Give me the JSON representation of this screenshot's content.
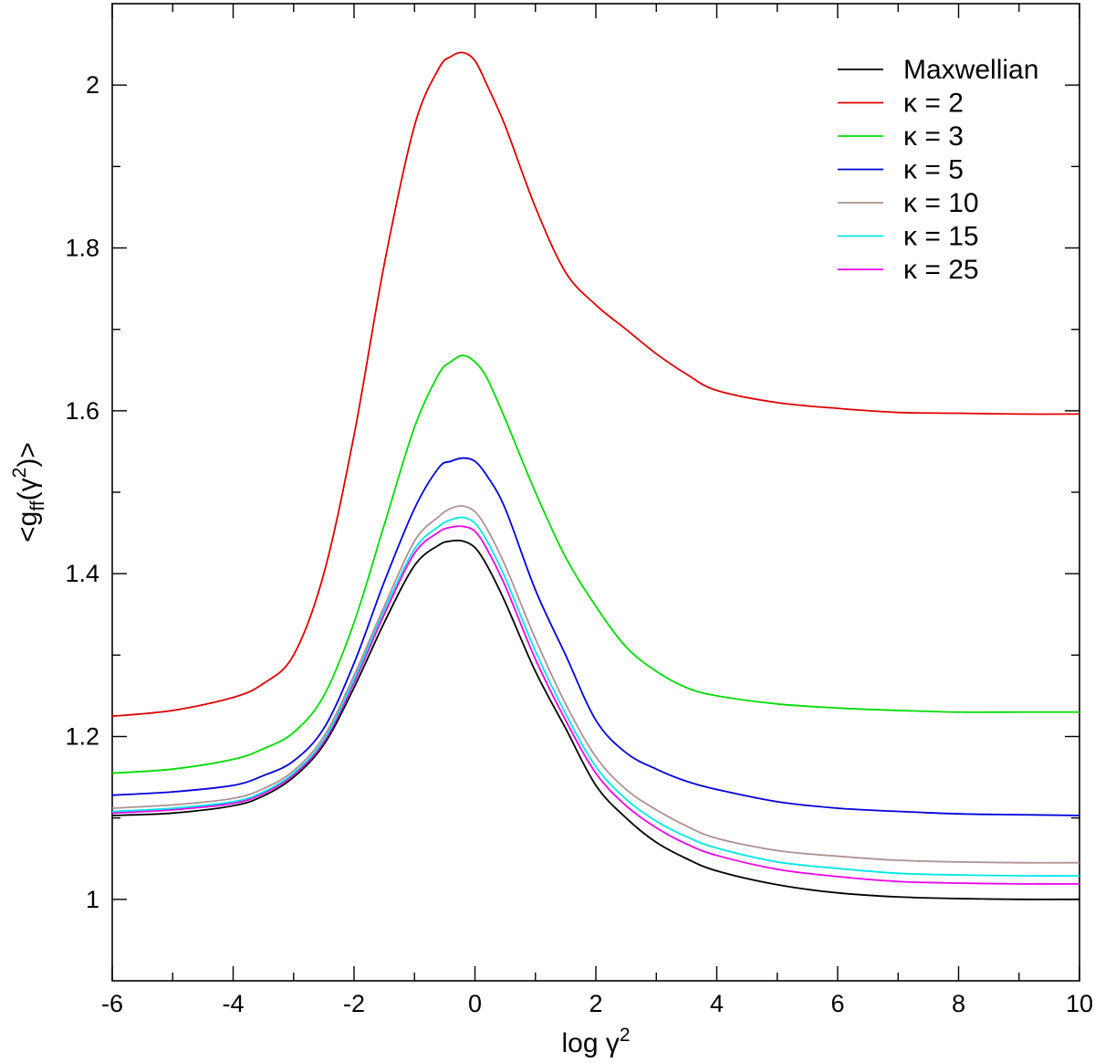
{
  "chart_data": {
    "type": "line",
    "title": "",
    "xlabel": "log γ",
    "xlabel_sup": "2",
    "ylabel": "<g",
    "ylabel_sub": "ff",
    "ylabel_mid": "(γ",
    "ylabel_sup": "2",
    "ylabel_end": ")>",
    "xlim": [
      -6,
      10
    ],
    "ylim": [
      0.9,
      2.1
    ],
    "x_ticks": [
      -6,
      -4,
      -2,
      0,
      2,
      4,
      6,
      8,
      10
    ],
    "x_tick_labels": [
      "-6",
      "-4",
      "-2",
      "0",
      "2",
      "4",
      "6",
      "8",
      "10"
    ],
    "y_ticks": [
      1.0,
      1.2,
      1.4,
      1.6,
      1.8,
      2.0
    ],
    "y_tick_labels": [
      "1",
      "1.2",
      "1.4",
      "1.6",
      "1.8",
      "2"
    ],
    "grid": false,
    "legend_position": "top-right",
    "x": [
      -6,
      -5,
      -4,
      -3.5,
      -3,
      -2.5,
      -2,
      -1.5,
      -1,
      -0.6,
      -0.4,
      -0.2,
      0,
      0.2,
      0.5,
      1,
      1.5,
      2,
      2.5,
      3,
      3.5,
      4,
      5,
      6,
      7,
      8,
      9,
      10
    ],
    "series": [
      {
        "name": "Maxwellian",
        "color": "#000000",
        "values": [
          1.103,
          1.106,
          1.115,
          1.127,
          1.15,
          1.19,
          1.26,
          1.34,
          1.41,
          1.435,
          1.44,
          1.44,
          1.432,
          1.41,
          1.365,
          1.28,
          1.21,
          1.14,
          1.1,
          1.07,
          1.05,
          1.035,
          1.018,
          1.008,
          1.003,
          1.001,
          1.0,
          1.0
        ]
      },
      {
        "name": "κ = 2",
        "color": "#e00000",
        "values": [
          1.225,
          1.232,
          1.248,
          1.265,
          1.3,
          1.4,
          1.57,
          1.78,
          1.95,
          2.02,
          2.035,
          2.04,
          2.03,
          2.0,
          1.95,
          1.85,
          1.77,
          1.73,
          1.7,
          1.67,
          1.645,
          1.625,
          1.61,
          1.603,
          1.598,
          1.597,
          1.596,
          1.596
        ]
      },
      {
        "name": "κ = 3",
        "color": "#00dd00",
        "values": [
          1.155,
          1.16,
          1.172,
          1.185,
          1.205,
          1.25,
          1.34,
          1.46,
          1.58,
          1.645,
          1.66,
          1.668,
          1.66,
          1.64,
          1.59,
          1.5,
          1.42,
          1.36,
          1.31,
          1.28,
          1.26,
          1.25,
          1.24,
          1.235,
          1.232,
          1.23,
          1.23,
          1.23
        ]
      },
      {
        "name": "κ = 5",
        "color": "#0000dd",
        "values": [
          1.128,
          1.132,
          1.14,
          1.152,
          1.17,
          1.21,
          1.29,
          1.39,
          1.48,
          1.53,
          1.538,
          1.542,
          1.538,
          1.52,
          1.48,
          1.38,
          1.3,
          1.22,
          1.18,
          1.16,
          1.145,
          1.135,
          1.12,
          1.112,
          1.108,
          1.105,
          1.104,
          1.103
        ]
      },
      {
        "name": "κ = 10",
        "color": "#b09090",
        "values": [
          1.112,
          1.116,
          1.124,
          1.136,
          1.158,
          1.2,
          1.275,
          1.36,
          1.44,
          1.47,
          1.48,
          1.483,
          1.476,
          1.455,
          1.41,
          1.32,
          1.24,
          1.175,
          1.135,
          1.11,
          1.09,
          1.075,
          1.06,
          1.053,
          1.048,
          1.046,
          1.045,
          1.045
        ]
      },
      {
        "name": "κ = 15",
        "color": "#00e8e8",
        "values": [
          1.108,
          1.112,
          1.12,
          1.132,
          1.155,
          1.196,
          1.27,
          1.355,
          1.43,
          1.458,
          1.466,
          1.469,
          1.462,
          1.44,
          1.395,
          1.305,
          1.228,
          1.163,
          1.123,
          1.096,
          1.077,
          1.063,
          1.046,
          1.038,
          1.032,
          1.03,
          1.029,
          1.029
        ]
      },
      {
        "name": "κ = 25",
        "color": "#ee00ee",
        "values": [
          1.106,
          1.11,
          1.118,
          1.13,
          1.153,
          1.193,
          1.266,
          1.35,
          1.425,
          1.451,
          1.457,
          1.458,
          1.452,
          1.43,
          1.385,
          1.295,
          1.22,
          1.155,
          1.115,
          1.088,
          1.068,
          1.054,
          1.037,
          1.028,
          1.022,
          1.02,
          1.019,
          1.019
        ]
      }
    ]
  }
}
